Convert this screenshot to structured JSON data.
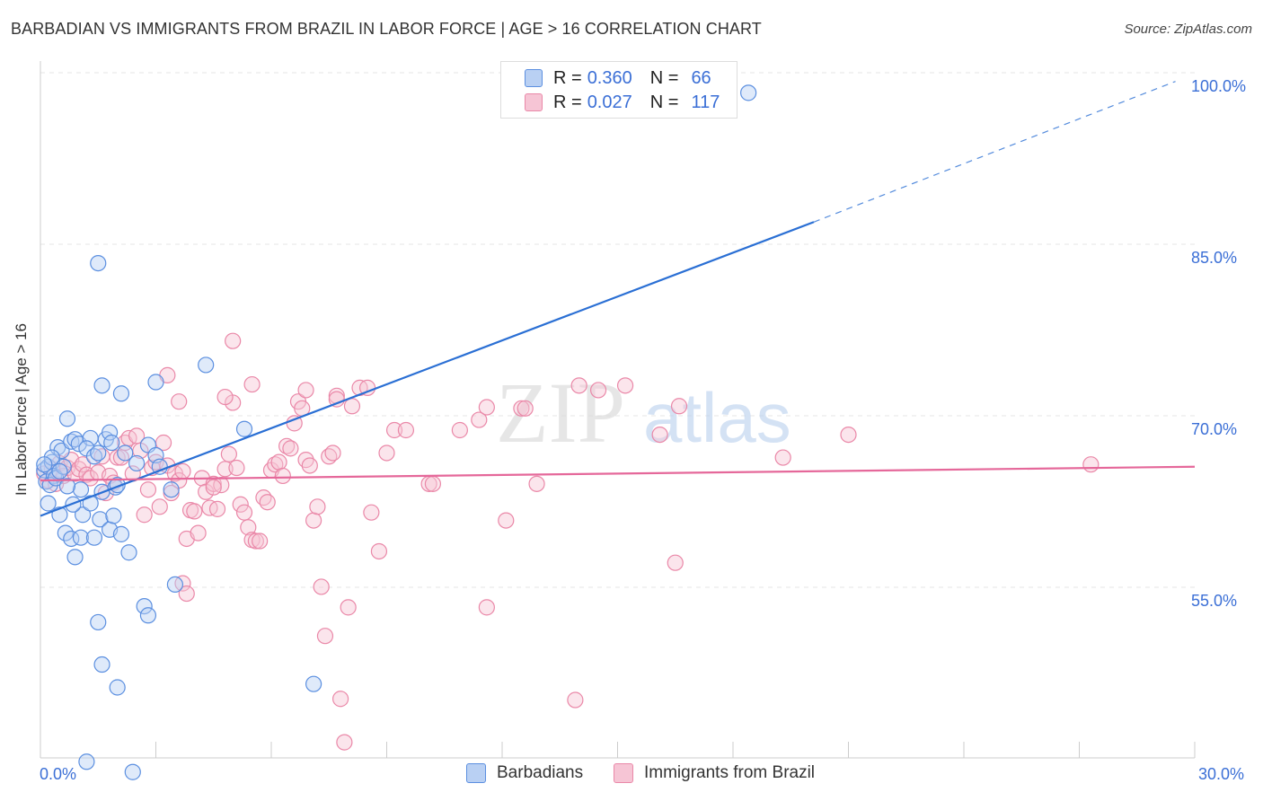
{
  "header": {
    "title": "BARBADIAN VS IMMIGRANTS FROM BRAZIL IN LABOR FORCE | AGE > 16 CORRELATION CHART",
    "source": "Source: ZipAtlas.com"
  },
  "watermark": {
    "zip": "ZIP",
    "atlas": "atlas"
  },
  "legend": {
    "rows": [
      {
        "r_label": "R =",
        "r_value": "0.360",
        "n_label": "N =",
        "n_value": "66"
      },
      {
        "r_label": "R =",
        "r_value": "0.027",
        "n_label": "N =",
        "n_value": "117"
      }
    ]
  },
  "chart_data": {
    "type": "scatter",
    "title": "BARBADIAN VS IMMIGRANTS FROM BRAZIL IN LABOR FORCE | AGE > 16 CORRELATION CHART",
    "xlabel": "",
    "ylabel": "In Labor Force | Age > 16",
    "xlim": [
      0,
      30
    ],
    "ylim": [
      40,
      102
    ],
    "x_tick_labels": [
      "0.0%",
      "30.0%"
    ],
    "y_tick_labels": [
      "100.0%",
      "85.0%",
      "70.0%",
      "55.0%"
    ],
    "y_ticks": [
      100,
      85,
      70,
      55
    ],
    "colors": {
      "barbadians": "#5b8fe0",
      "barbadians_fill": "#b9d0f3",
      "brazil": "#ea88a8",
      "brazil_fill": "#f6c5d5",
      "barbadians_line": "#2a6fd4",
      "brazil_line": "#e5689a",
      "tick_text": "#3b6fd6"
    },
    "series": [
      {
        "name": "Barbadians",
        "r": 0.36,
        "n": 66,
        "trend": {
          "x_start": 0.0,
          "y_start": 62.5,
          "x_solid_end": 20.1,
          "y_solid_end": 88.2,
          "x_dash_end": 29.5,
          "y_dash_end": 100.5
        },
        "points": [
          [
            0.1,
            66.5
          ],
          [
            0.2,
            66.8
          ],
          [
            0.15,
            65.5
          ],
          [
            0.3,
            67.2
          ],
          [
            0.35,
            66.0
          ],
          [
            0.25,
            65.2
          ],
          [
            0.4,
            65.8
          ],
          [
            0.2,
            63.6
          ],
          [
            0.45,
            68.5
          ],
          [
            0.55,
            68.2
          ],
          [
            0.6,
            66.8
          ],
          [
            0.7,
            71.0
          ],
          [
            0.8,
            69.0
          ],
          [
            0.9,
            69.2
          ],
          [
            1.0,
            68.8
          ],
          [
            1.3,
            69.3
          ],
          [
            1.2,
            68.4
          ],
          [
            1.4,
            67.7
          ],
          [
            1.5,
            68.0
          ],
          [
            1.7,
            69.2
          ],
          [
            1.8,
            69.8
          ],
          [
            1.85,
            68.9
          ],
          [
            2.2,
            68.0
          ],
          [
            2.8,
            68.7
          ],
          [
            3.0,
            67.8
          ],
          [
            0.5,
            62.6
          ],
          [
            0.65,
            61.0
          ],
          [
            0.8,
            60.5
          ],
          [
            0.9,
            58.9
          ],
          [
            1.1,
            62.6
          ],
          [
            1.05,
            60.6
          ],
          [
            1.4,
            60.6
          ],
          [
            0.85,
            63.5
          ],
          [
            1.05,
            64.8
          ],
          [
            1.3,
            63.6
          ],
          [
            1.55,
            62.2
          ],
          [
            1.8,
            61.3
          ],
          [
            1.9,
            62.5
          ],
          [
            2.1,
            60.9
          ],
          [
            2.3,
            59.3
          ],
          [
            1.6,
            64.6
          ],
          [
            1.95,
            65.0
          ],
          [
            1.6,
            73.9
          ],
          [
            2.1,
            73.2
          ],
          [
            3.0,
            74.2
          ],
          [
            4.3,
            75.7
          ],
          [
            5.3,
            70.1
          ],
          [
            3.1,
            66.8
          ],
          [
            3.4,
            64.8
          ],
          [
            3.5,
            56.5
          ],
          [
            2.7,
            54.6
          ],
          [
            2.8,
            53.8
          ],
          [
            1.5,
            53.2
          ],
          [
            1.6,
            49.5
          ],
          [
            2.0,
            47.5
          ],
          [
            7.1,
            47.8
          ],
          [
            1.2,
            41.0
          ],
          [
            2.4,
            40.1
          ],
          [
            1.5,
            84.6
          ],
          [
            18.4,
            99.5
          ],
          [
            2.0,
            65.2
          ],
          [
            2.5,
            67.1
          ],
          [
            0.3,
            67.6
          ],
          [
            0.5,
            66.4
          ],
          [
            0.7,
            65.1
          ],
          [
            0.1,
            67.0
          ]
        ]
      },
      {
        "name": "Immigrants from Brazil",
        "r": 0.027,
        "n": 117,
        "trend": {
          "x_start": 0.0,
          "y_start": 65.6,
          "x_solid_end": 30.0,
          "y_solid_end": 66.8
        },
        "points": [
          [
            0.1,
            66.2
          ],
          [
            0.2,
            65.6
          ],
          [
            0.3,
            66.6
          ],
          [
            0.4,
            65.3
          ],
          [
            0.5,
            67.1
          ],
          [
            0.6,
            66.0
          ],
          [
            0.7,
            66.7
          ],
          [
            0.8,
            67.4
          ],
          [
            0.9,
            66.2
          ],
          [
            1.0,
            66.6
          ],
          [
            1.1,
            67.0
          ],
          [
            1.2,
            66.1
          ],
          [
            1.3,
            65.8
          ],
          [
            1.5,
            66.3
          ],
          [
            1.6,
            67.7
          ],
          [
            1.7,
            64.5
          ],
          [
            1.8,
            66.0
          ],
          [
            1.9,
            65.4
          ],
          [
            2.0,
            67.6
          ],
          [
            2.1,
            67.6
          ],
          [
            2.2,
            68.9
          ],
          [
            2.3,
            69.3
          ],
          [
            2.4,
            66.2
          ],
          [
            2.5,
            69.5
          ],
          [
            2.6,
            68.2
          ],
          [
            2.7,
            62.6
          ],
          [
            2.8,
            64.8
          ],
          [
            2.9,
            66.7
          ],
          [
            3.0,
            67.2
          ],
          [
            3.1,
            63.3
          ],
          [
            3.2,
            68.9
          ],
          [
            3.3,
            66.9
          ],
          [
            3.4,
            64.5
          ],
          [
            3.5,
            66.2
          ],
          [
            3.6,
            65.6
          ],
          [
            3.7,
            66.4
          ],
          [
            3.8,
            60.5
          ],
          [
            3.9,
            63.0
          ],
          [
            4.0,
            62.9
          ],
          [
            4.1,
            61.0
          ],
          [
            4.2,
            65.8
          ],
          [
            4.3,
            64.6
          ],
          [
            4.4,
            63.2
          ],
          [
            4.5,
            65.3
          ],
          [
            4.6,
            63.1
          ],
          [
            4.7,
            65.2
          ],
          [
            4.8,
            66.6
          ],
          [
            4.9,
            67.9
          ],
          [
            5.0,
            72.4
          ],
          [
            5.1,
            66.7
          ],
          [
            5.2,
            63.5
          ],
          [
            5.3,
            62.8
          ],
          [
            5.4,
            61.5
          ],
          [
            5.5,
            60.4
          ],
          [
            5.6,
            60.3
          ],
          [
            5.7,
            60.3
          ],
          [
            5.8,
            64.1
          ],
          [
            5.9,
            63.7
          ],
          [
            6.0,
            66.5
          ],
          [
            6.1,
            67.0
          ],
          [
            6.2,
            67.2
          ],
          [
            6.3,
            66.0
          ],
          [
            6.4,
            68.6
          ],
          [
            6.5,
            68.4
          ],
          [
            6.6,
            70.6
          ],
          [
            6.7,
            72.5
          ],
          [
            6.8,
            71.9
          ],
          [
            6.9,
            67.4
          ],
          [
            7.0,
            66.9
          ],
          [
            7.1,
            62.1
          ],
          [
            7.2,
            63.3
          ],
          [
            7.3,
            56.3
          ],
          [
            7.4,
            52.0
          ],
          [
            7.5,
            67.7
          ],
          [
            7.6,
            68.0
          ],
          [
            7.7,
            73.0
          ],
          [
            7.8,
            46.5
          ],
          [
            7.9,
            42.7
          ],
          [
            8.0,
            54.5
          ],
          [
            8.1,
            72.1
          ],
          [
            8.3,
            73.7
          ],
          [
            8.6,
            62.8
          ],
          [
            8.8,
            59.4
          ],
          [
            9.0,
            68.0
          ],
          [
            9.2,
            70.0
          ],
          [
            9.5,
            70.0
          ],
          [
            3.3,
            74.8
          ],
          [
            3.6,
            72.5
          ],
          [
            4.8,
            72.9
          ],
          [
            5.5,
            74.0
          ],
          [
            6.9,
            73.5
          ],
          [
            7.7,
            72.7
          ],
          [
            8.5,
            73.7
          ],
          [
            10.1,
            65.3
          ],
          [
            10.2,
            65.3
          ],
          [
            10.9,
            70.0
          ],
          [
            11.4,
            70.9
          ],
          [
            11.6,
            72.0
          ],
          [
            11.6,
            54.5
          ],
          [
            12.1,
            62.1
          ],
          [
            12.5,
            71.9
          ],
          [
            12.6,
            71.9
          ],
          [
            12.9,
            65.3
          ],
          [
            14.0,
            73.9
          ],
          [
            14.5,
            73.5
          ],
          [
            15.2,
            73.9
          ],
          [
            13.9,
            46.4
          ],
          [
            16.1,
            69.6
          ],
          [
            16.5,
            58.4
          ],
          [
            16.6,
            72.1
          ],
          [
            19.3,
            67.6
          ],
          [
            21.0,
            69.6
          ],
          [
            27.3,
            67.0
          ],
          [
            5.0,
            77.8
          ],
          [
            3.7,
            56.6
          ],
          [
            3.8,
            55.7
          ],
          [
            4.5,
            65.0
          ]
        ]
      }
    ]
  },
  "bottom_legend": {
    "items": [
      {
        "label": "Barbadians"
      },
      {
        "label": "Immigrants from Brazil"
      }
    ]
  }
}
